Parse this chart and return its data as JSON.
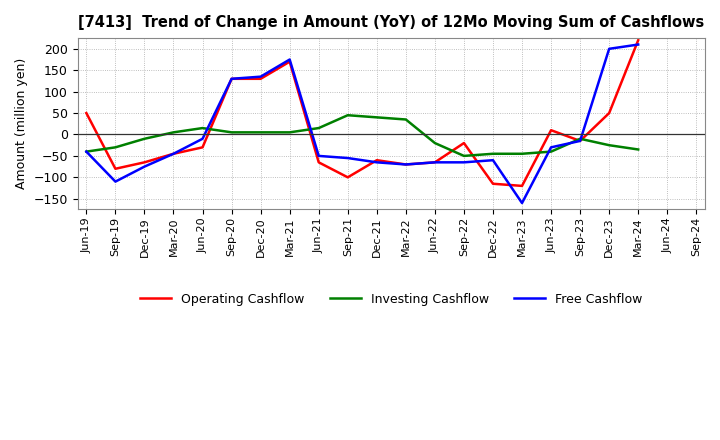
{
  "title": "[7413]  Trend of Change in Amount (YoY) of 12Mo Moving Sum of Cashflows",
  "ylabel": "Amount (million yen)",
  "x_labels": [
    "Jun-19",
    "Sep-19",
    "Dec-19",
    "Mar-20",
    "Jun-20",
    "Sep-20",
    "Dec-20",
    "Mar-21",
    "Jun-21",
    "Sep-21",
    "Dec-21",
    "Mar-22",
    "Jun-22",
    "Sep-22",
    "Dec-22",
    "Mar-23",
    "Jun-23",
    "Sep-23",
    "Dec-23",
    "Mar-24",
    "Jun-24",
    "Sep-24"
  ],
  "operating": [
    50,
    -80,
    -65,
    -45,
    -30,
    130,
    130,
    170,
    -65,
    -100,
    -60,
    -70,
    -65,
    -20,
    -115,
    -120,
    10,
    -15,
    50,
    220,
    null,
    null
  ],
  "investing": [
    -40,
    -30,
    -10,
    5,
    15,
    5,
    5,
    5,
    15,
    45,
    40,
    35,
    -20,
    -50,
    -45,
    -45,
    -40,
    -10,
    -25,
    -35,
    null,
    null
  ],
  "free": [
    -40,
    -110,
    -75,
    -45,
    -10,
    130,
    135,
    175,
    -50,
    -55,
    -65,
    -70,
    -65,
    -65,
    -60,
    -160,
    -30,
    -15,
    200,
    210,
    null,
    null
  ],
  "operating_color": "#ff0000",
  "investing_color": "#008000",
  "free_color": "#0000ff",
  "ylim": [
    -175,
    225
  ],
  "yticks": [
    -150,
    -100,
    -50,
    0,
    50,
    100,
    150,
    200
  ],
  "background_color": "#ffffff",
  "legend_labels": [
    "Operating Cashflow",
    "Investing Cashflow",
    "Free Cashflow"
  ]
}
